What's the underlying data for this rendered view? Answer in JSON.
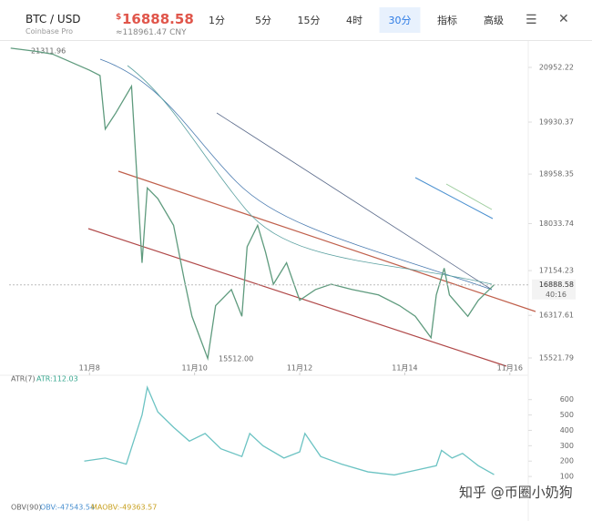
{
  "header": {
    "symbol": "BTC / USD",
    "exchange": "Coinbase Pro",
    "currency": "$",
    "price": "16888.58",
    "cny": "≈118961.47 CNY",
    "tabs": [
      "1分",
      "5分",
      "15分",
      "4时",
      "30分",
      "指标",
      "高级"
    ],
    "active_tab": 4
  },
  "annotations": {
    "high": "21311.96",
    "low": "15512.00",
    "countdown": "40:16",
    "watermark": "知乎 @币圈小奶狗"
  },
  "obv": {
    "labels": [
      "OBV(90)",
      "OBV:-47543.54",
      "MAOBV:-49363.57"
    ]
  },
  "chart_data": [
    {
      "type": "line",
      "color": "#5f9b7e",
      "x": [
        6.5,
        7.0,
        7.3,
        8.0,
        8.2,
        8.3,
        8.5,
        8.8,
        9.0,
        9.1,
        9.3,
        9.6,
        9.8,
        9.95,
        10.25,
        10.4,
        10.7,
        10.9,
        11.0,
        11.2,
        11.35,
        11.5,
        11.75,
        12.0,
        12.3,
        12.6,
        13.0,
        13.5,
        13.9,
        14.2,
        14.5,
        14.6,
        14.75,
        14.85,
        15.2,
        15.4,
        15.7
      ],
      "values": [
        21311.96,
        21250,
        21200,
        20900,
        20800,
        19800,
        20100,
        20600,
        17300,
        18700,
        18500,
        18000,
        17000,
        16300,
        15512,
        16500,
        16800,
        16300,
        17600,
        18000,
        17500,
        16900,
        17300,
        16600,
        16800,
        16900,
        16800,
        16700,
        16500,
        16300,
        15900,
        16700,
        17200,
        16700,
        16300,
        16600,
        16888.58
      ],
      "last": 16888.58,
      "xlim": [
        6.47,
        16.35
      ],
      "ylim": [
        15232,
        21361
      ],
      "xticks": [
        {
          "value": 8,
          "label": "11月8"
        },
        {
          "value": 10,
          "label": "11月10"
        },
        {
          "value": 12,
          "label": "11月12"
        },
        {
          "value": 14,
          "label": "11月14"
        },
        {
          "value": 16,
          "label": "11月16"
        }
      ],
      "yticks": [
        20952.22,
        19930.37,
        18958.35,
        18033.74,
        17154.23,
        16317.61,
        15521.79
      ]
    },
    {
      "type": "line",
      "color": "#6cc3c3",
      "labels": [
        "ATR(7)",
        "ATR:112.03"
      ],
      "x": [
        7.9,
        8.3,
        8.7,
        9.0,
        9.1,
        9.3,
        9.6,
        9.9,
        10.2,
        10.5,
        10.9,
        11.05,
        11.3,
        11.7,
        12.0,
        12.1,
        12.4,
        12.8,
        13.3,
        13.8,
        14.2,
        14.6,
        14.7,
        14.9,
        15.1,
        15.4,
        15.7
      ],
      "values": [
        200,
        220,
        180,
        500,
        680,
        520,
        420,
        330,
        380,
        280,
        230,
        380,
        300,
        220,
        260,
        380,
        230,
        180,
        130,
        110,
        140,
        170,
        270,
        220,
        250,
        170,
        112.03
      ],
      "xlim": [
        6.47,
        16.35
      ],
      "ylim": [
        0,
        705
      ],
      "yticks": [
        100,
        200,
        300,
        400,
        500,
        600
      ]
    }
  ]
}
